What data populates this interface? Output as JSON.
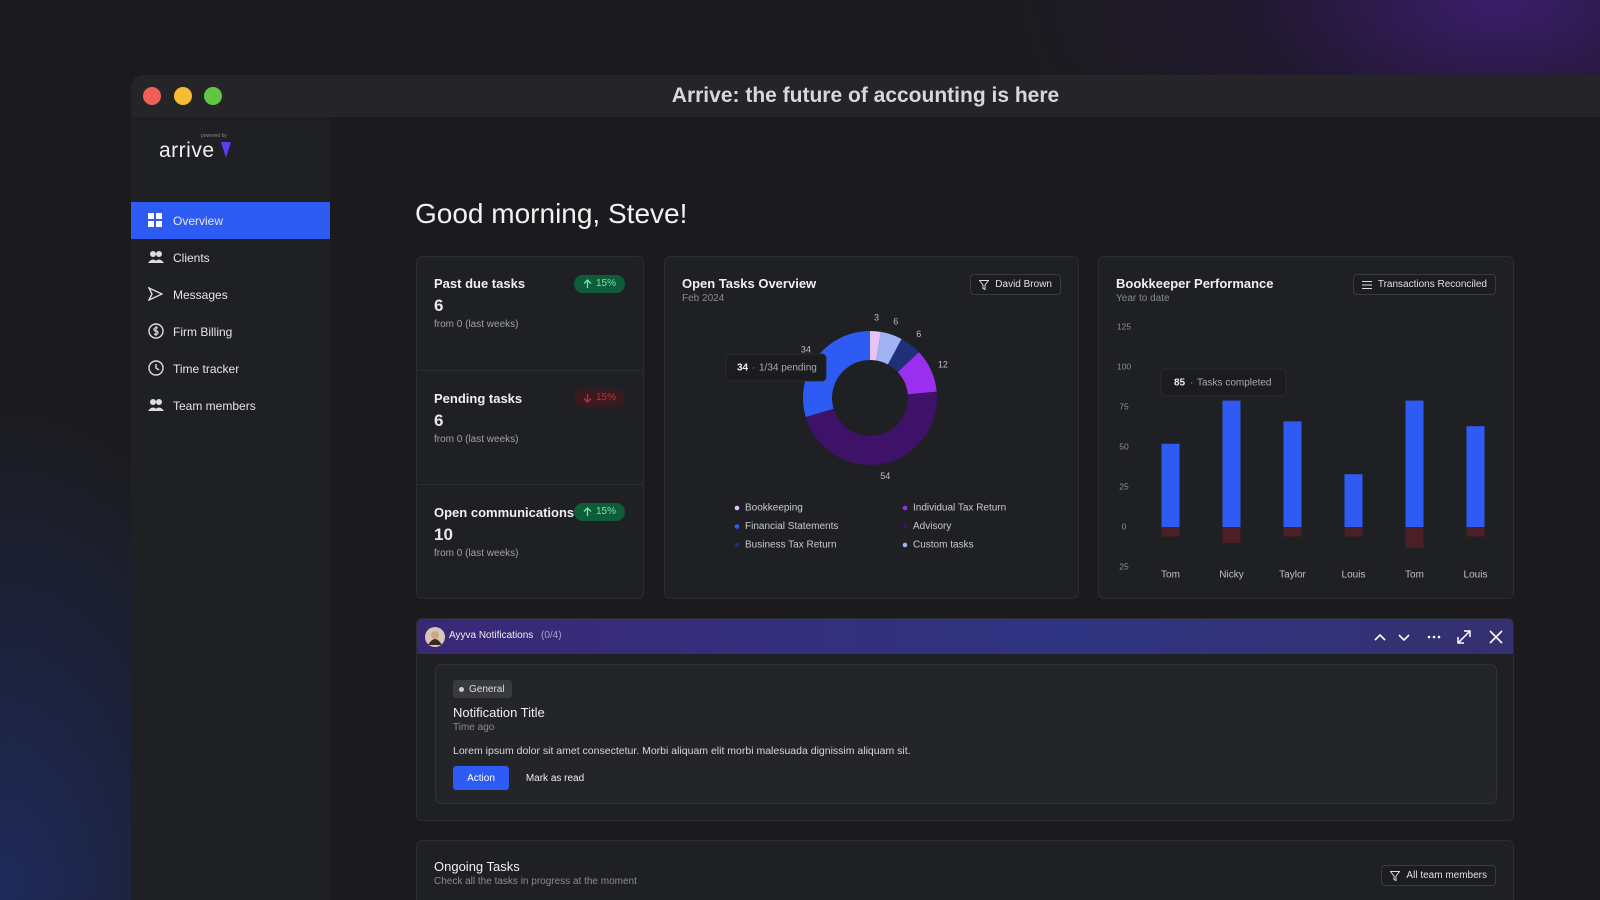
{
  "window": {
    "title": "Arrive: the future of accounting is here"
  },
  "sidebar": {
    "logo": "arrive",
    "logo_note": "powered by",
    "nav": [
      "Overview",
      "Clients",
      "Messages",
      "Firm Billing",
      "Time tracker",
      "Team members"
    ],
    "active": 0
  },
  "greeting": "Good morning, Steve!",
  "stats": [
    {
      "title": "Past due tasks",
      "value": 6,
      "change": "15%",
      "direction": "up",
      "note": "from 0 (last weeks)"
    },
    {
      "title": "Pending tasks",
      "value": 6,
      "change": "15%",
      "direction": "down",
      "note": "from 0 (last weeks)"
    },
    {
      "title": "Open communications",
      "value": 10,
      "change": "15%",
      "direction": "up",
      "note": "from 0 (last weeks)"
    }
  ],
  "chart_data": [
    {
      "type": "pie",
      "donut": true,
      "title": "Open Tasks Overview",
      "subtitle": "Feb 2024",
      "filter": "David Brown",
      "categories": [
        "Bookkeeping",
        "Custom tasks",
        "Business Tax Return",
        "Individual Tax Return",
        "Advisory",
        "Financial Statements"
      ],
      "values": [
        3,
        6,
        6,
        12,
        54,
        34
      ],
      "colors": [
        "#e6c2f5",
        "#9fb2f3",
        "#1f2f78",
        "#9a2ff0",
        "#3e1268",
        "#2f5bf5"
      ],
      "tooltip": {
        "value": 34,
        "text": "1/34 pending"
      }
    },
    {
      "type": "bar",
      "title": "Bookkeeper Performance",
      "subtitle": "Year to date",
      "filter": "Transactions Reconciled",
      "categories": [
        "Tom",
        "Nicky",
        "Taylor",
        "Louis",
        "Tom",
        "Louis"
      ],
      "series": [
        {
          "color": "#2f5bf5",
          "values": [
            52,
            79,
            66,
            33,
            79,
            63
          ]
        },
        {
          "color": "#4a1f25",
          "values": [
            -6,
            -10,
            -6,
            -6,
            -13,
            -6
          ]
        }
      ],
      "ylim": [
        -25,
        125
      ],
      "yticks": [
        {
          "value": -25,
          "label": "25"
        },
        0,
        25,
        50,
        75,
        100,
        125
      ],
      "grid": false,
      "tooltip": {
        "value": 85,
        "text": "Tasks completed"
      }
    }
  ],
  "notifications": {
    "title": "Ayyva Notifications",
    "count": "(0/4)",
    "items": [
      {
        "tag": "General",
        "title": "Notification Title",
        "time": "Time ago",
        "body": "Lorem ipsum dolor sit amet consectetur. Morbi aliquam elit morbi malesuada dignissim aliquam sit.",
        "actions": [
          "Action",
          "Mark as read"
        ]
      }
    ]
  },
  "ongoing": {
    "title": "Ongoing Tasks",
    "subtitle": "Check all the tasks in progress at the moment",
    "filter": "All team members"
  }
}
